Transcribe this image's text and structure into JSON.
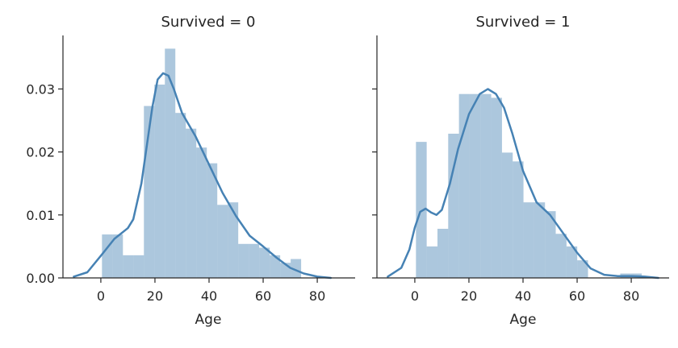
{
  "chart_data": [
    {
      "type": "histogram+kde",
      "title": "Survived = 0",
      "xlabel": "Age",
      "ylabel": "",
      "xlim": [
        -14,
        94
      ],
      "ylim": [
        0,
        0.0385
      ],
      "xticks": [
        0,
        20,
        40,
        60,
        80
      ],
      "yticks": [
        0.0,
        0.01,
        0.02,
        0.03
      ],
      "ytick_labels": [
        "0.00",
        "0.01",
        "0.02",
        "0.03"
      ],
      "show_yticklabels": true,
      "color": "#4682b4",
      "bins": [
        {
          "x0": 0.42,
          "x1": 4.29,
          "density": 0.0069
        },
        {
          "x0": 4.29,
          "x1": 8.17,
          "density": 0.0069
        },
        {
          "x0": 8.17,
          "x1": 12.04,
          "density": 0.0036
        },
        {
          "x0": 12.04,
          "x1": 15.92,
          "density": 0.0036
        },
        {
          "x0": 15.92,
          "x1": 19.79,
          "density": 0.0273
        },
        {
          "x0": 19.79,
          "x1": 23.67,
          "density": 0.0307
        },
        {
          "x0": 23.67,
          "x1": 27.54,
          "density": 0.0364
        },
        {
          "x0": 27.54,
          "x1": 31.42,
          "density": 0.0262
        },
        {
          "x0": 31.42,
          "x1": 35.29,
          "density": 0.0237
        },
        {
          "x0": 35.29,
          "x1": 39.17,
          "density": 0.0207
        },
        {
          "x0": 39.17,
          "x1": 43.04,
          "density": 0.0182
        },
        {
          "x0": 43.04,
          "x1": 46.92,
          "density": 0.0116
        },
        {
          "x0": 46.92,
          "x1": 50.79,
          "density": 0.012
        },
        {
          "x0": 50.79,
          "x1": 54.67,
          "density": 0.0054
        },
        {
          "x0": 54.67,
          "x1": 58.54,
          "density": 0.0054
        },
        {
          "x0": 58.54,
          "x1": 62.42,
          "density": 0.0048
        },
        {
          "x0": 62.42,
          "x1": 66.29,
          "density": 0.0036
        },
        {
          "x0": 66.29,
          "x1": 70.17,
          "density": 0.0024
        },
        {
          "x0": 70.17,
          "x1": 74.04,
          "density": 0.003
        }
      ],
      "kde": {
        "x": [
          -10,
          -5,
          0,
          5,
          10,
          12,
          15,
          17,
          19,
          21,
          23,
          25,
          27,
          30,
          35,
          40,
          45,
          50,
          55,
          60,
          65,
          70,
          75,
          80,
          85
        ],
        "y": [
          0.0002,
          0.0009,
          0.0035,
          0.0062,
          0.0079,
          0.0093,
          0.015,
          0.021,
          0.027,
          0.0315,
          0.0325,
          0.0321,
          0.03,
          0.0262,
          0.0225,
          0.018,
          0.0135,
          0.0098,
          0.0067,
          0.005,
          0.0032,
          0.0016,
          0.0007,
          0.0002,
          0.0
        ]
      }
    },
    {
      "type": "histogram+kde",
      "title": "Survived = 1",
      "xlabel": "Age",
      "ylabel": "",
      "xlim": [
        -14,
        94
      ],
      "ylim": [
        0,
        0.0385
      ],
      "xticks": [
        0,
        20,
        40,
        60,
        80
      ],
      "yticks": [
        0.0,
        0.01,
        0.02,
        0.03
      ],
      "ytick_labels": [
        "",
        "",
        "",
        ""
      ],
      "show_yticklabels": false,
      "color": "#4682b4",
      "bins": [
        {
          "x0": 0.42,
          "x1": 4.39,
          "density": 0.0216
        },
        {
          "x0": 4.39,
          "x1": 8.37,
          "density": 0.005
        },
        {
          "x0": 8.37,
          "x1": 12.34,
          "density": 0.0078
        },
        {
          "x0": 12.34,
          "x1": 16.32,
          "density": 0.0229
        },
        {
          "x0": 16.32,
          "x1": 20.29,
          "density": 0.0292
        },
        {
          "x0": 20.29,
          "x1": 24.27,
          "density": 0.0292
        },
        {
          "x0": 24.27,
          "x1": 28.24,
          "density": 0.0292
        },
        {
          "x0": 28.24,
          "x1": 32.22,
          "density": 0.0286
        },
        {
          "x0": 32.22,
          "x1": 36.19,
          "density": 0.0199
        },
        {
          "x0": 36.19,
          "x1": 40.17,
          "density": 0.0185
        },
        {
          "x0": 40.17,
          "x1": 44.14,
          "density": 0.012
        },
        {
          "x0": 44.14,
          "x1": 48.12,
          "density": 0.012
        },
        {
          "x0": 48.12,
          "x1": 52.09,
          "density": 0.0106
        },
        {
          "x0": 52.09,
          "x1": 56.07,
          "density": 0.007
        },
        {
          "x0": 56.07,
          "x1": 60.04,
          "density": 0.005
        },
        {
          "x0": 60.04,
          "x1": 64.02,
          "density": 0.0028
        },
        {
          "x0": 75.94,
          "x1": 79.91,
          "density": 0.0007
        },
        {
          "x0": 79.91,
          "x1": 83.89,
          "density": 0.0007
        }
      ],
      "kde": {
        "x": [
          -10,
          -5,
          -2,
          0,
          2,
          4,
          6,
          8,
          10,
          13,
          16,
          20,
          24,
          27,
          30,
          33,
          36,
          40,
          45,
          50,
          55,
          60,
          65,
          70,
          75,
          80,
          85,
          90
        ],
        "y": [
          0.0002,
          0.0016,
          0.0045,
          0.008,
          0.0105,
          0.011,
          0.0104,
          0.01,
          0.0108,
          0.015,
          0.0205,
          0.026,
          0.0292,
          0.03,
          0.0292,
          0.027,
          0.023,
          0.017,
          0.012,
          0.01,
          0.007,
          0.004,
          0.0015,
          0.0005,
          0.0003,
          0.0003,
          0.0002,
          0.0
        ]
      }
    }
  ]
}
